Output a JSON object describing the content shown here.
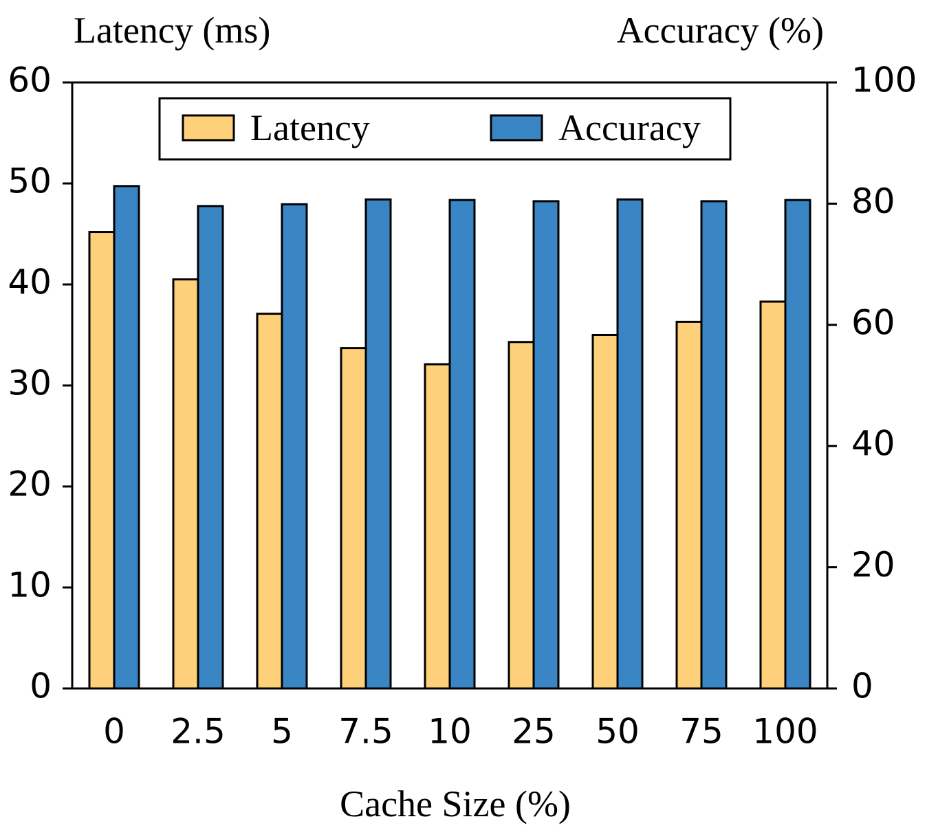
{
  "chart_data": {
    "type": "bar",
    "x_label": "Cache Size (%)",
    "y_label": "Latency (ms)",
    "y2_label": "Accuracy (%)",
    "categories": [
      "0",
      "2.5",
      "5",
      "7.5",
      "10",
      "25",
      "50",
      "75",
      "100"
    ],
    "series": [
      {
        "name": "Latency",
        "color": "#fed07a",
        "values": [
          45.2,
          40.5,
          37.1,
          33.7,
          32.1,
          34.3,
          35.0,
          36.3,
          38.3
        ]
      },
      {
        "name": "Accuracy",
        "color": "#3a86c4",
        "axis": "y2",
        "values": [
          82.9,
          79.6,
          79.9,
          80.7,
          80.6,
          80.4,
          80.7,
          80.4,
          80.6
        ]
      }
    ],
    "ylim": [
      0,
      60
    ],
    "yticks": [
      0,
      10,
      20,
      30,
      40,
      50,
      60
    ],
    "y2lim": [
      0,
      100
    ],
    "y2ticks": [
      0,
      20,
      40,
      60,
      80,
      100
    ],
    "legend": "top"
  }
}
